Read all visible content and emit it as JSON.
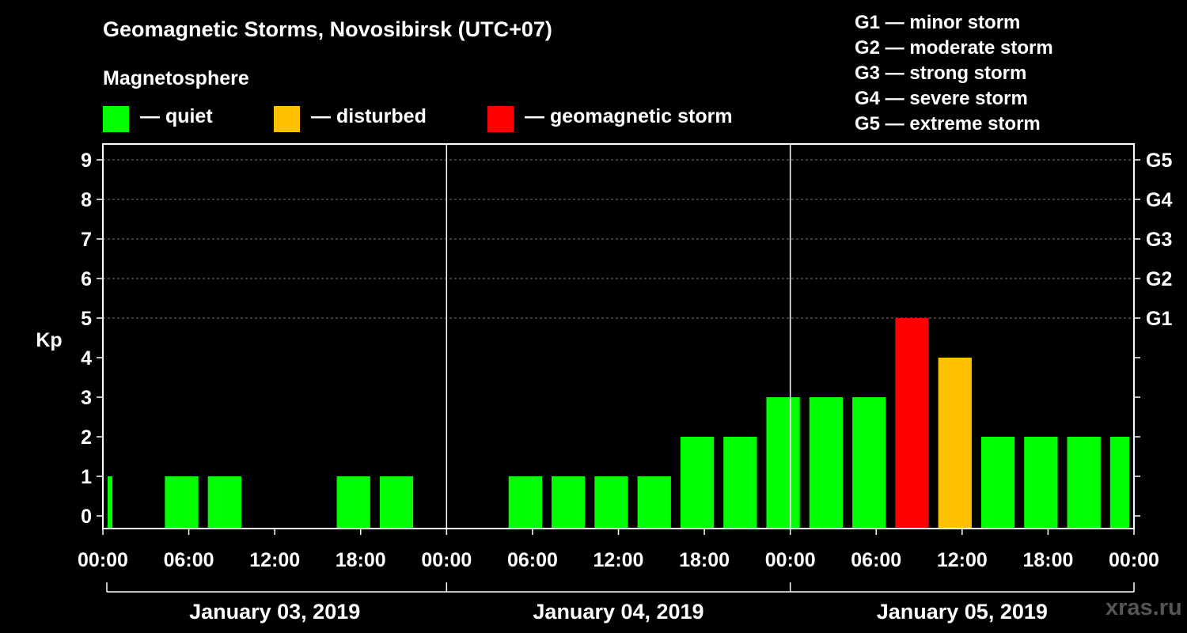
{
  "title": "Geomagnetic Storms, Novosibirsk (UTC+07)",
  "legend": {
    "heading": "Magnetosphere",
    "items": [
      {
        "label": "— quiet",
        "color": "#00ff00"
      },
      {
        "label": "— disturbed",
        "color": "#ffc000"
      },
      {
        "label": "— geomagnetic storm",
        "color": "#ff0000"
      }
    ]
  },
  "g_levels": [
    "G1 — minor storm",
    "G2 — moderate storm",
    "G3 — strong storm",
    "G4 — severe storm",
    "G5 — extreme storm"
  ],
  "watermark": "xras.ru",
  "chart_data": {
    "type": "bar",
    "ylabel": "Kp",
    "ylim": [
      0,
      9
    ],
    "yticks": [
      0,
      1,
      2,
      3,
      4,
      5,
      6,
      7,
      8,
      9
    ],
    "right_ticks": [
      {
        "kp": 5,
        "label": "G1"
      },
      {
        "kp": 6,
        "label": "G2"
      },
      {
        "kp": 7,
        "label": "G3"
      },
      {
        "kp": 8,
        "label": "G4"
      },
      {
        "kp": 9,
        "label": "G5"
      }
    ],
    "xtick_labels": [
      "00:00",
      "06:00",
      "12:00",
      "18:00",
      "00:00",
      "06:00",
      "12:00",
      "18:00",
      "00:00",
      "06:00",
      "12:00",
      "18:00",
      "00:00"
    ],
    "days": [
      "January 03, 2019",
      "January 04, 2019",
      "January 05, 2019"
    ],
    "bar_interval_hours": 3,
    "bar_start_hour": -2,
    "values": [
      1,
      0,
      1,
      1,
      0,
      0,
      1,
      1,
      0,
      0,
      1,
      1,
      1,
      1,
      2,
      2,
      3,
      3,
      3,
      5,
      4,
      2,
      2,
      2,
      2
    ],
    "colors": {
      "quiet": "#00ff00",
      "disturbed": "#ffc000",
      "storm": "#ff0000"
    }
  }
}
